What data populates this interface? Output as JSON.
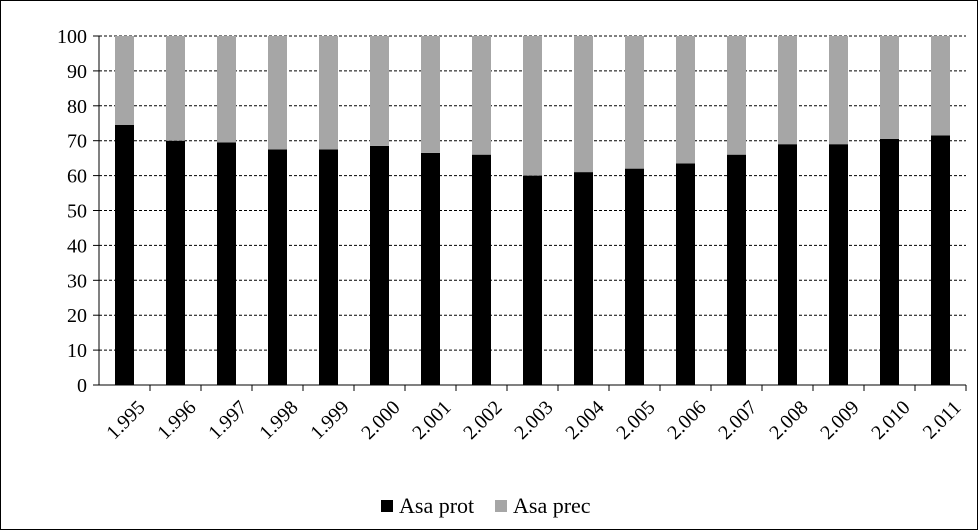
{
  "chart_data": {
    "type": "bar",
    "stacked": true,
    "title": "",
    "xlabel": "",
    "ylabel": "",
    "ylim": [
      0,
      100
    ],
    "yticks": [
      0,
      10,
      20,
      30,
      40,
      50,
      60,
      70,
      80,
      90,
      100
    ],
    "grid": true,
    "legend_position": "bottom",
    "categories": [
      "1.995",
      "1.996",
      "1.997",
      "1.998",
      "1.999",
      "2.000",
      "2.001",
      "2.002",
      "2.003",
      "2.004",
      "2.005",
      "2.006",
      "2.007",
      "2.008",
      "2.009",
      "2.010",
      "2.011"
    ],
    "series": [
      {
        "name": "Asa prot",
        "color": "#000000",
        "values": [
          74.5,
          70,
          69.5,
          67.5,
          67.5,
          68.5,
          66.5,
          66,
          60,
          61,
          62,
          63.5,
          66,
          69,
          69,
          70.5,
          71.5
        ]
      },
      {
        "name": "Asa prec",
        "color": "#a6a6a6",
        "values": [
          25.5,
          30,
          30.5,
          32.5,
          32.5,
          31.5,
          33.5,
          34,
          40,
          39,
          38,
          36.5,
          34,
          31,
          31,
          29.5,
          28.5
        ]
      }
    ]
  }
}
